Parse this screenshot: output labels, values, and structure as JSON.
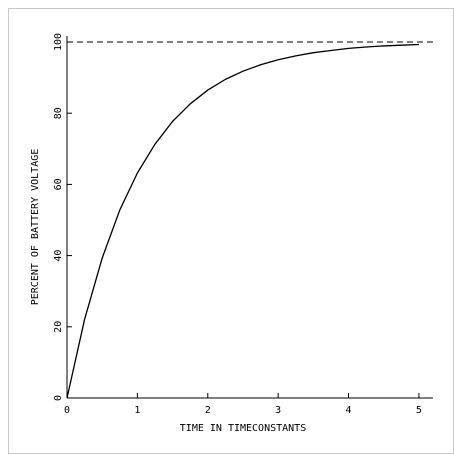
{
  "chart_data": {
    "type": "line",
    "title": "",
    "xlabel": "TIME IN TIMECONSTANTS",
    "ylabel": "PERCENT OF BATTERY VOLTAGE",
    "xlim": [
      0,
      5.2
    ],
    "ylim": [
      0,
      100
    ],
    "x_ticks": [
      0,
      1,
      2,
      3,
      4,
      5
    ],
    "y_ticks": [
      0,
      20,
      40,
      60,
      80,
      100
    ],
    "grid": false,
    "legend": "none",
    "colors": {
      "curve": "#000000",
      "reference_line": "#000000",
      "frame": "#000000",
      "outer_border": "#c8c8c8"
    },
    "series": [
      {
        "x": [
          0,
          0.25,
          0.5,
          0.75,
          1,
          1.25,
          1.5,
          1.75,
          2,
          2.25,
          2.5,
          2.75,
          3,
          3.25,
          3.5,
          3.75,
          4,
          4.25,
          4.5,
          4.75,
          5
        ],
        "values": [
          0,
          22.1,
          39.3,
          52.8,
          63.2,
          71.3,
          77.7,
          82.6,
          86.5,
          89.5,
          91.8,
          93.6,
          95.0,
          96.1,
          97.0,
          97.6,
          98.2,
          98.6,
          98.9,
          99.1,
          99.3
        ]
      }
    ],
    "reference_line": {
      "y": 100,
      "style": "dashed"
    }
  }
}
